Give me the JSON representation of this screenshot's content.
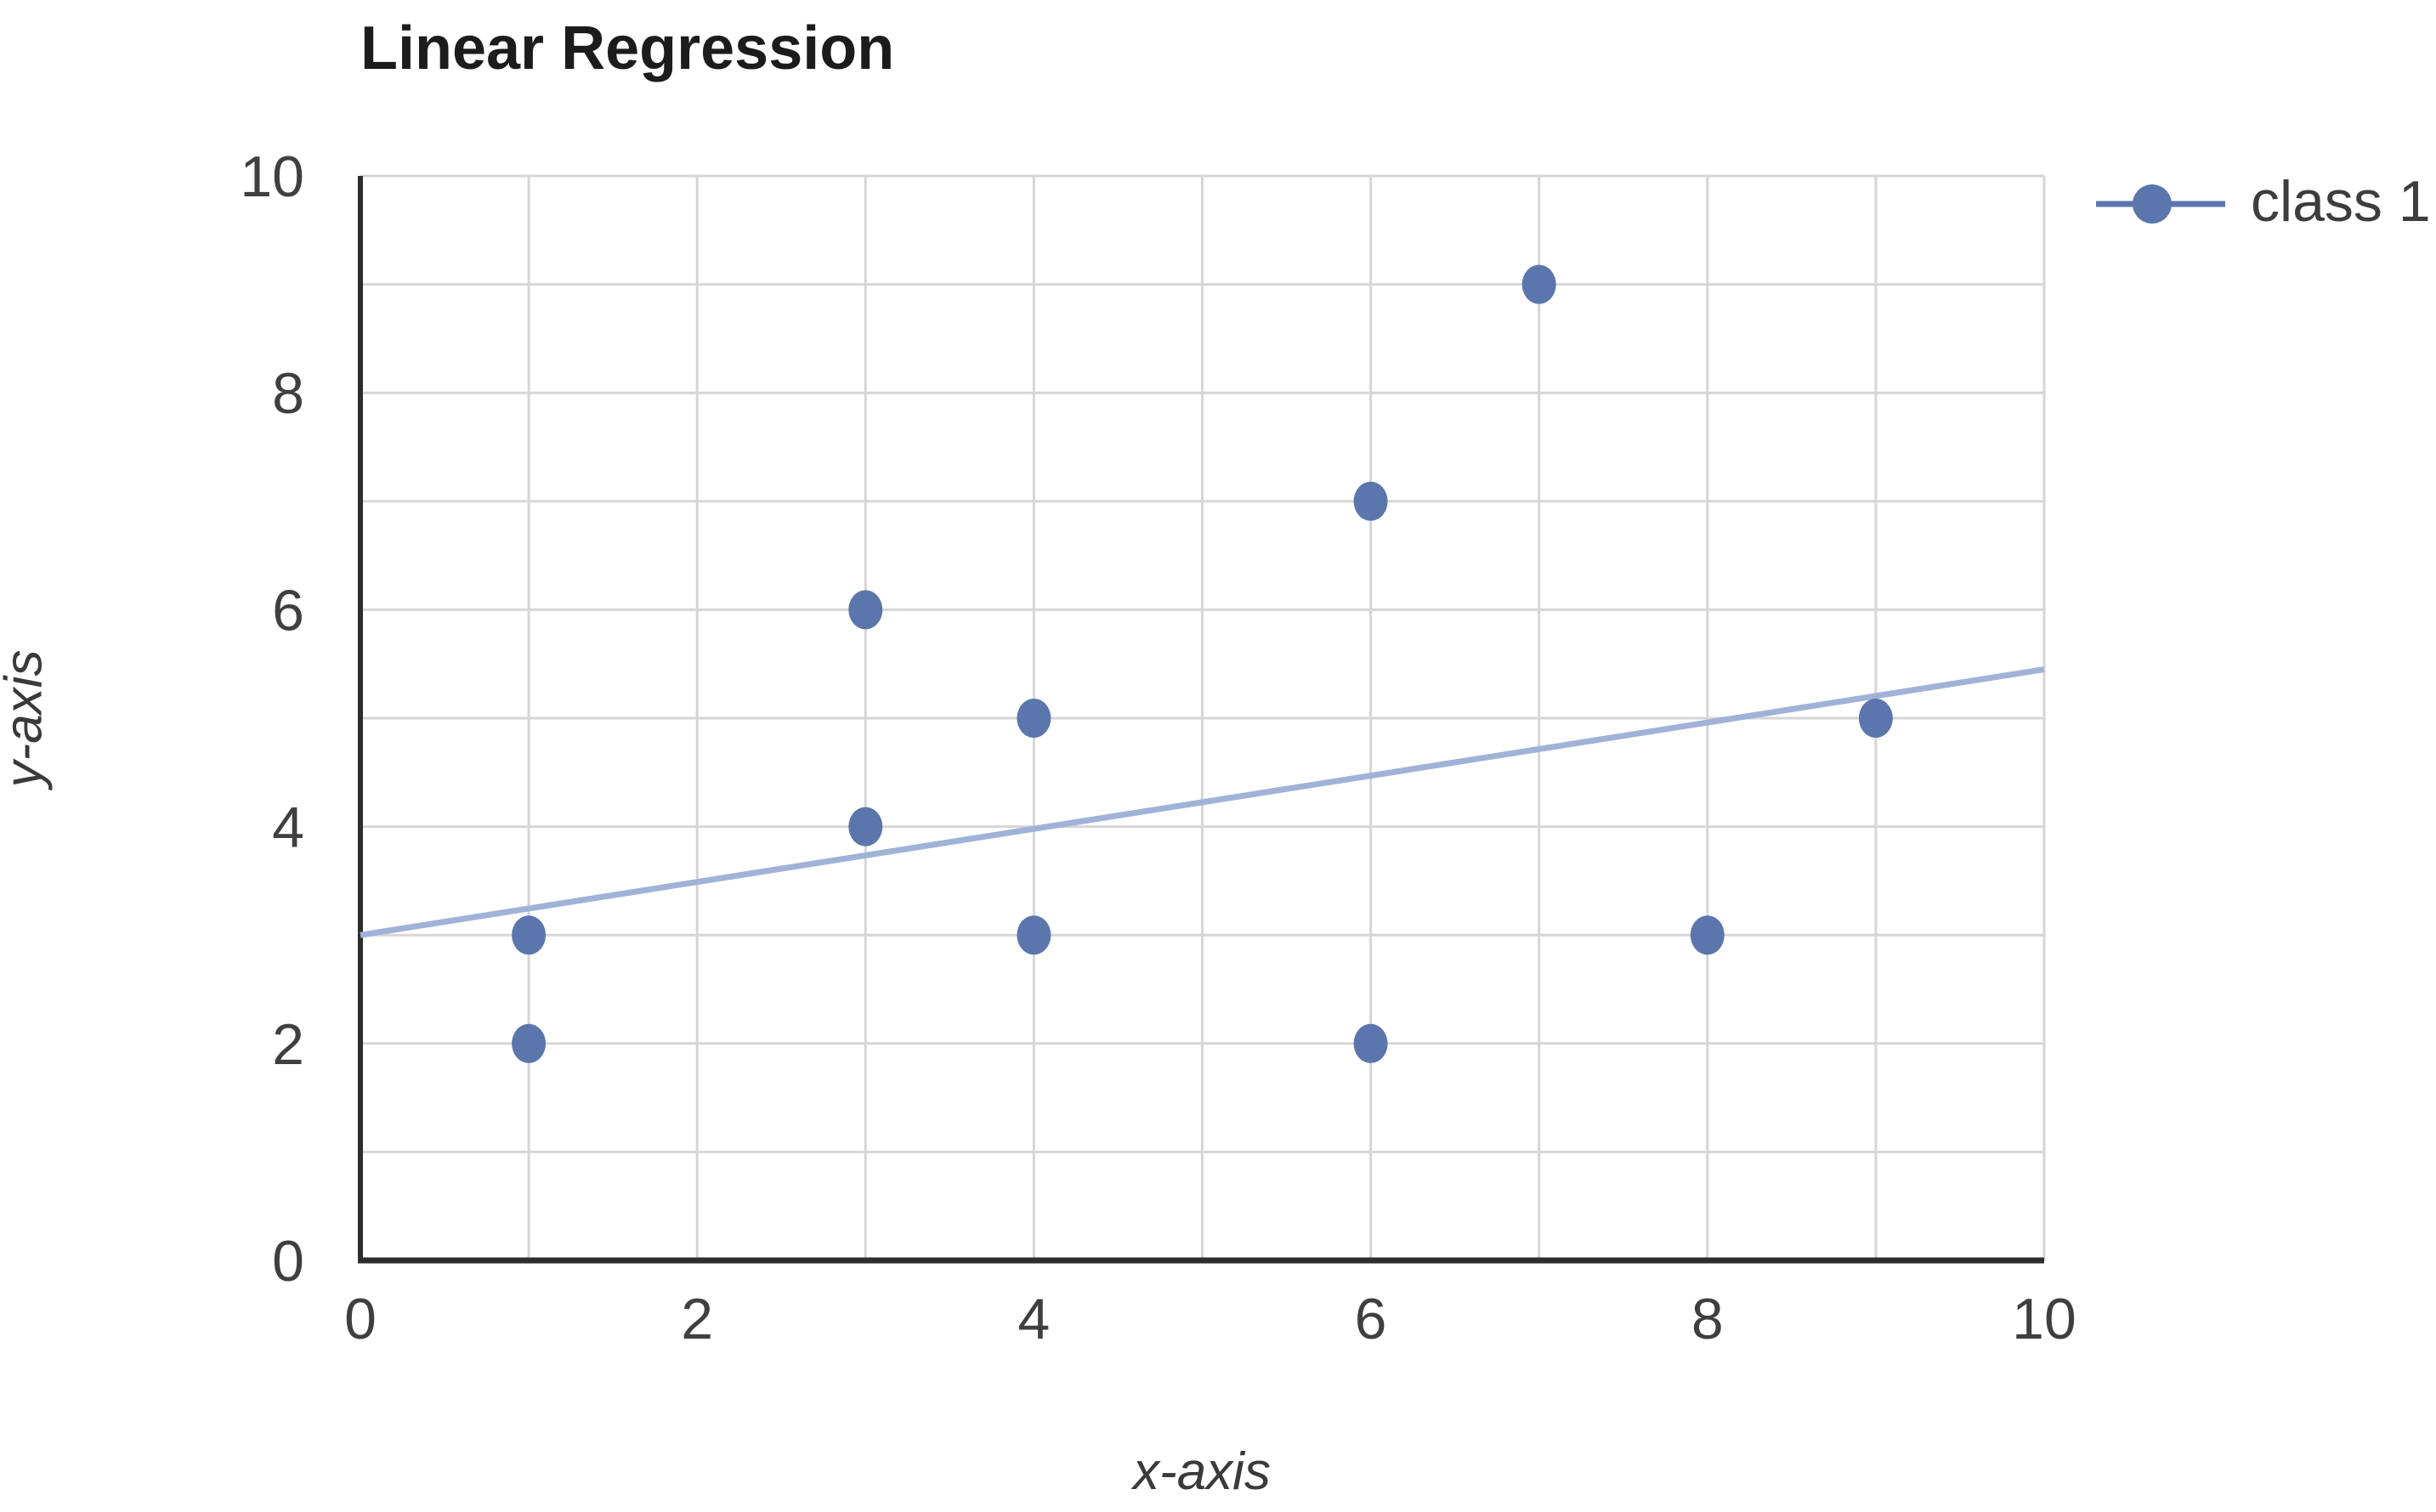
{
  "chart_data": {
    "type": "scatter",
    "title": "Linear Regression",
    "xlabel": "x-axis",
    "ylabel": "y-axis",
    "xlim": [
      0,
      10
    ],
    "ylim": [
      0,
      10
    ],
    "x_ticks": [
      0,
      2,
      4,
      6,
      8,
      10
    ],
    "y_ticks": [
      0,
      2,
      4,
      6,
      8,
      10
    ],
    "grid": true,
    "grid_step": 1,
    "legend_position": "right",
    "series": [
      {
        "name": "class 1",
        "kind": "scatter",
        "color": "#5b76ac",
        "points": [
          [
            1,
            2
          ],
          [
            1,
            3
          ],
          [
            3,
            4
          ],
          [
            3,
            6
          ],
          [
            4,
            3
          ],
          [
            4,
            5
          ],
          [
            6,
            2
          ],
          [
            6,
            7
          ],
          [
            7,
            9
          ],
          [
            8,
            3
          ],
          [
            9,
            5
          ]
        ]
      },
      {
        "name": "trendline",
        "kind": "line",
        "color": "#a0b2d7",
        "points": [
          [
            0,
            3.0
          ],
          [
            10,
            5.45
          ]
        ]
      }
    ],
    "colors": {
      "axis": "#2d2d2d",
      "grid": "#d6d6d6",
      "tick_text": "#3f3f3f",
      "title_text": "#1c1c1c"
    }
  }
}
